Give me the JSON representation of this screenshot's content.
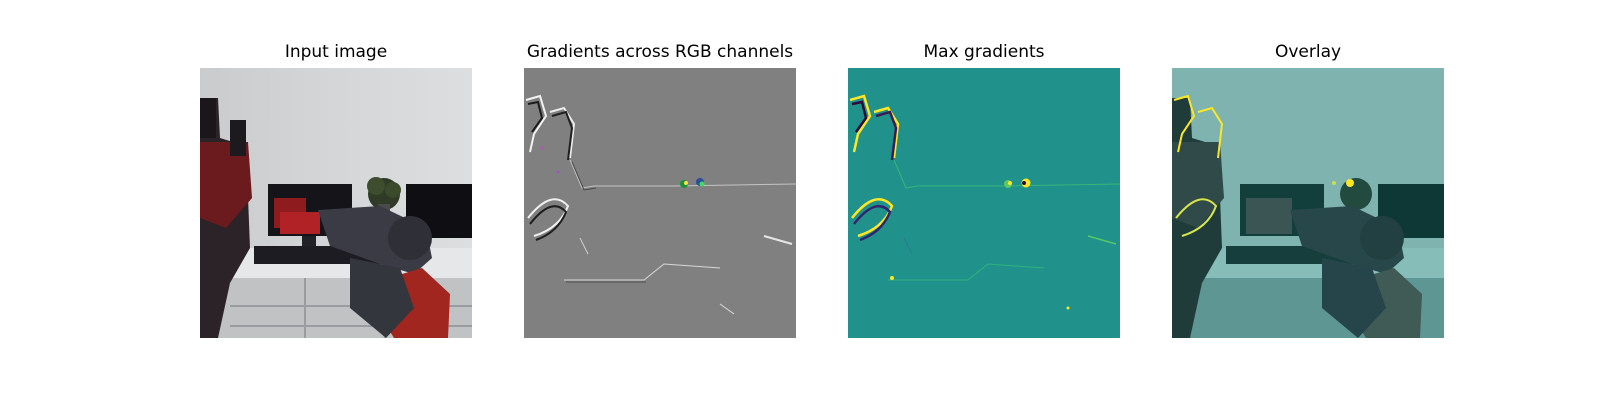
{
  "panels": [
    {
      "title": "Input image"
    },
    {
      "title": "Gradients across RGB channels"
    },
    {
      "title": "Max gradients"
    },
    {
      "title": "Overlay"
    }
  ],
  "colors": {
    "background": "#ffffff",
    "viridis_mid": "#21918c",
    "viridis_high": "#fde725",
    "gradient_gray": "#808080",
    "overlay_tint": "#2a8a86"
  }
}
